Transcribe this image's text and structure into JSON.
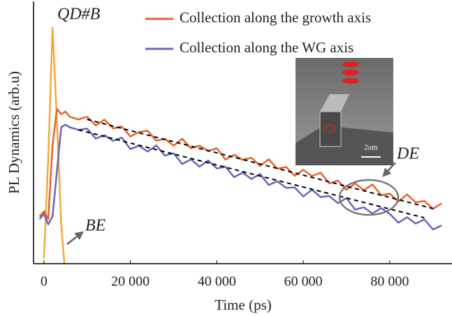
{
  "chart_data": {
    "type": "line",
    "x_label": "Time (ps)",
    "y_label": "PL Dynamics (arb.u)",
    "annotations": [
      "QD#B",
      "BE",
      "DE",
      "2um"
    ],
    "xlim": [
      -2400,
      94400
    ],
    "xticks": [
      0,
      {
        "value": 20000,
        "label": "20 000"
      },
      {
        "value": 40000,
        "label": "40 000"
      },
      {
        "value": 60000,
        "label": "60 000"
      },
      {
        "value": 80000,
        "label": "80 000"
      }
    ],
    "ylim": [
      0,
      100
    ],
    "yticks": [],
    "x": [
      -1000,
      0,
      1000,
      2000,
      3000,
      4000,
      5000,
      6000,
      8000,
      10000,
      12000,
      14000,
      16000,
      18000,
      20000,
      22000,
      24000,
      26000,
      28000,
      30000,
      32000,
      34000,
      36000,
      38000,
      40000,
      42000,
      44000,
      46000,
      48000,
      50000,
      52000,
      54000,
      56000,
      58000,
      60000,
      62000,
      64000,
      66000,
      68000,
      70000,
      72000,
      74000,
      76000,
      78000,
      80000,
      82000,
      84000,
      86000,
      88000,
      90000,
      92000
    ],
    "series": [
      {
        "color": "#f2a93b",
        "values": [
          null,
          2,
          40,
          90,
          55,
          15,
          -5,
          null,
          null,
          null,
          null,
          null,
          null,
          null,
          null,
          null,
          null,
          null,
          null,
          null,
          null,
          null,
          null,
          null,
          null,
          null,
          null,
          null,
          null,
          null,
          null,
          null,
          null,
          null,
          null,
          null,
          null,
          null,
          null,
          null,
          null,
          null,
          null,
          null,
          null,
          null,
          null,
          null,
          null,
          null,
          null
        ]
      },
      {
        "name": "Collection along the growth axis",
        "color": "#e8622c",
        "values": [
          18,
          20,
          17,
          45,
          59,
          57,
          58,
          56,
          55,
          56.0,
          52.7,
          54.9,
          51.6,
          52.3,
          48.5,
          50.2,
          50.7,
          46.9,
          47.6,
          45.0,
          47.6,
          44.0,
          45.0,
          42.9,
          44.0,
          39.7,
          41.5,
          39.6,
          40.4,
          37.3,
          39.8,
          36.2,
          36.9,
          33.5,
          35.8,
          33.4,
          34.7,
          30.6,
          31.7,
          28.2,
          30.6,
          28.0,
          30.2,
          26.1,
          26.7,
          23.7,
          26.4,
          23.4,
          23.9,
          20.9,
          23.0
        ]
      },
      {
        "name": "Collection along the WG axis",
        "color": "#6668b8",
        "values": [
          17,
          19,
          15,
          18,
          35,
          52,
          53,
          52,
          51,
          51.5,
          47.7,
          49.0,
          46.8,
          48.1,
          43.7,
          45.0,
          42.7,
          45.1,
          41.2,
          42.1,
          38.0,
          39.8,
          37.0,
          39.3,
          36.3,
          37.0,
          33.0,
          34.7,
          32.3,
          34.2,
          30.0,
          31.4,
          28.9,
          29.1,
          25.6,
          28.2,
          25.4,
          25.8,
          23.1,
          25.0,
          20.6,
          21.5,
          19.1,
          21.2,
          19.0,
          15.6,
          17.7,
          15.3,
          16.9,
          13.0,
          14.6
        ]
      }
    ],
    "fits": [
      {
        "color": "#000000",
        "x": [
          10000,
          90000
        ],
        "values": [
          55,
          21
        ]
      },
      {
        "color": "#000000",
        "x": [
          8000,
          88000
        ],
        "values": [
          51,
          17.5
        ]
      }
    ]
  }
}
